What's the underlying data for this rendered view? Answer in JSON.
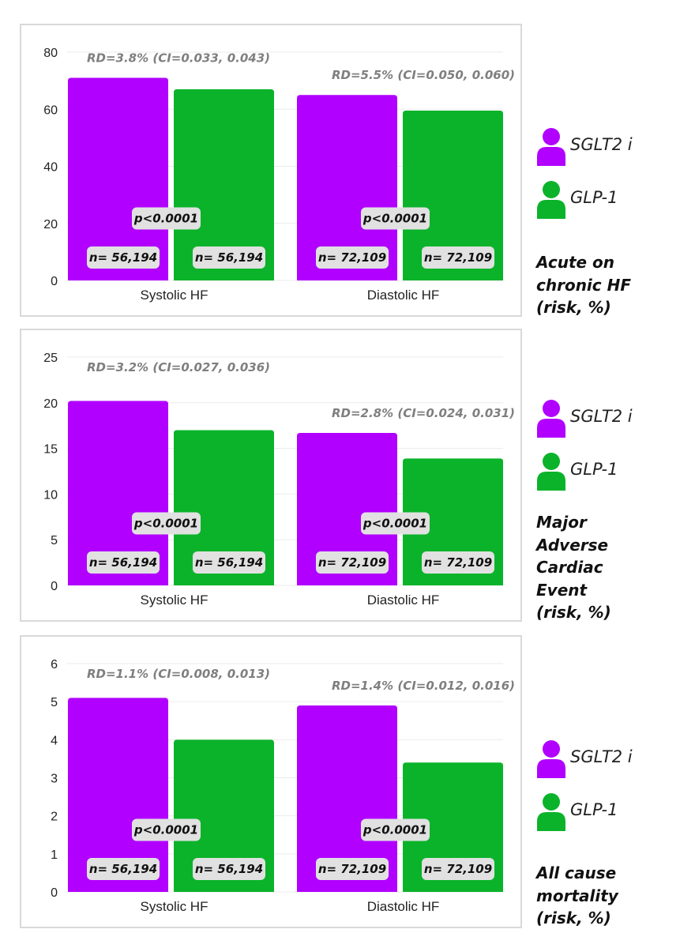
{
  "chart_data": [
    {
      "type": "bar",
      "title": "Acute on chronic HF (risk, %)",
      "categories": [
        "Systolic HF",
        "Diastolic HF"
      ],
      "series": [
        {
          "name": "SGLT2 i",
          "color": "#b100ff",
          "values": [
            71,
            65
          ],
          "n_labels": [
            "n= 56,194",
            "n= 72,109"
          ]
        },
        {
          "name": "GLP-1",
          "color": "#0bb32a",
          "values": [
            67,
            59.5
          ],
          "n_labels": [
            "n= 56,194",
            "n= 72,109"
          ]
        }
      ],
      "ylim": [
        0,
        80
      ],
      "yticks": [
        0,
        20,
        40,
        60,
        80
      ],
      "rd_labels": [
        "RD=3.8% (CI=0.033, 0.043)",
        "RD=5.5% (CI=0.050, 0.060)"
      ],
      "p_labels": [
        "p<0.0001",
        "p<0.0001"
      ]
    },
    {
      "type": "bar",
      "title": "Major Adverse Cardiac Event (risk, %)",
      "categories": [
        "Systolic HF",
        "Diastolic HF"
      ],
      "series": [
        {
          "name": "SGLT2 i",
          "color": "#b100ff",
          "values": [
            20.2,
            16.7
          ],
          "n_labels": [
            "n= 56,194",
            "n= 72,109"
          ]
        },
        {
          "name": "GLP-1",
          "color": "#0bb32a",
          "values": [
            17,
            13.9
          ],
          "n_labels": [
            "n= 56,194",
            "n= 72,109"
          ]
        }
      ],
      "ylim": [
        0,
        25
      ],
      "yticks": [
        0,
        5,
        10,
        15,
        20,
        25
      ],
      "rd_labels": [
        "RD=3.2% (CI=0.027, 0.036)",
        "RD=2.8% (CI=0.024, 0.031)"
      ],
      "p_labels": [
        "p<0.0001",
        "p<0.0001"
      ]
    },
    {
      "type": "bar",
      "title": "All cause mortality (risk, %)",
      "categories": [
        "Systolic HF",
        "Diastolic HF"
      ],
      "series": [
        {
          "name": "SGLT2 i",
          "color": "#b100ff",
          "values": [
            5.1,
            4.9
          ],
          "n_labels": [
            "n= 56,194",
            "n= 72,109"
          ]
        },
        {
          "name": "GLP-1",
          "color": "#0bb32a",
          "values": [
            4.0,
            3.4
          ],
          "n_labels": [
            "n= 56,194",
            "n= 72,109"
          ]
        }
      ],
      "ylim": [
        0,
        6
      ],
      "yticks": [
        0,
        1,
        2,
        3,
        4,
        5,
        6
      ],
      "rd_labels": [
        "RD=1.1% (CI=0.008, 0.013)",
        "RD=1.4% (CI=0.012, 0.016)"
      ],
      "p_labels": [
        "p<0.0001",
        "p<0.0001"
      ]
    }
  ],
  "legend": [
    {
      "label": "SGLT2 i",
      "color": "#b100ff",
      "icon": "person-icon"
    },
    {
      "label": "GLP-1",
      "color": "#0bb32a",
      "icon": "person-icon"
    }
  ],
  "metrics": [
    {
      "lines": [
        "Acute on",
        "chronic HF",
        "(risk, %)"
      ]
    },
    {
      "lines": [
        "Major",
        "Adverse",
        "Cardiac",
        "Event",
        "(risk, %)"
      ]
    },
    {
      "lines": [
        "All cause",
        "mortality",
        "(risk, %)"
      ]
    }
  ]
}
